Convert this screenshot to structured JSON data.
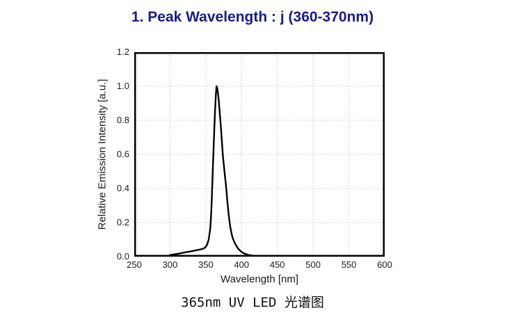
{
  "title": {
    "text": "1. Peak Wavelength : j (360-370nm)",
    "color": "#1a1a8c"
  },
  "caption": {
    "text": "365nm UV LED 光谱图",
    "color": "#111111"
  },
  "chart_data": {
    "type": "line",
    "title": "",
    "xlabel": "Wavelength [nm]",
    "ylabel": "Relative Emission Intensity [a.u.]",
    "xlim": [
      250,
      600
    ],
    "ylim": [
      0,
      1.2
    ],
    "xticks": [
      250,
      300,
      350,
      400,
      450,
      500,
      550,
      600
    ],
    "xtick_labels": [
      "250",
      "300",
      "350",
      "400",
      "450",
      "500",
      "550",
      "600"
    ],
    "yticks": [
      0,
      0.2,
      0.4,
      0.6,
      0.8,
      1.0,
      1.2
    ],
    "ytick_labels": [
      "0.0",
      "0.2",
      "0.4",
      "0.6",
      "0.8",
      "1.0",
      "1.2"
    ],
    "grid": "dotted",
    "legend": "none",
    "line_color": "#000000",
    "grid_color": "#c0c0c0",
    "frame_color": "#000000",
    "peak_wavelength_nm": 365,
    "peak_intensity": 1.0,
    "series": [
      {
        "name": "365nm UV LED emission spectrum",
        "x": [
          300,
          305,
          310,
          315,
          320,
          325,
          330,
          335,
          340,
          345,
          348,
          350,
          352,
          354,
          356,
          357,
          358,
          359,
          360,
          361,
          362,
          363,
          364,
          365,
          366,
          367,
          368,
          369,
          370,
          371,
          372,
          373,
          374,
          375,
          376,
          377,
          378,
          379,
          380,
          382,
          384,
          386,
          388,
          390,
          392,
          395,
          398,
          400,
          403,
          406,
          410,
          415,
          420,
          430,
          440,
          450
        ],
        "y": [
          0.01,
          0.013,
          0.016,
          0.02,
          0.024,
          0.028,
          0.032,
          0.036,
          0.04,
          0.045,
          0.05,
          0.058,
          0.072,
          0.1,
          0.155,
          0.215,
          0.3,
          0.41,
          0.53,
          0.65,
          0.76,
          0.86,
          0.95,
          1.0,
          0.99,
          0.96,
          0.92,
          0.87,
          0.82,
          0.765,
          0.705,
          0.645,
          0.59,
          0.545,
          0.505,
          0.465,
          0.425,
          0.38,
          0.33,
          0.245,
          0.18,
          0.135,
          0.105,
          0.085,
          0.068,
          0.048,
          0.035,
          0.028,
          0.02,
          0.015,
          0.01,
          0.006,
          0.004,
          0.002,
          0.0015,
          0.001
        ]
      }
    ]
  }
}
